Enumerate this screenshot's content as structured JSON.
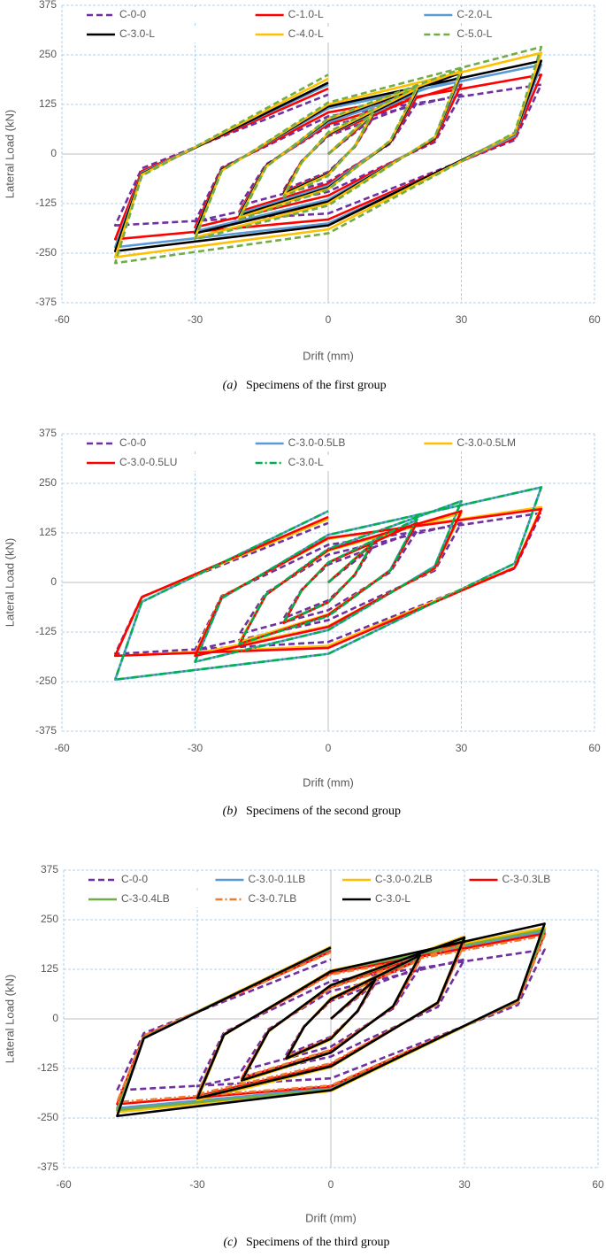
{
  "chart_data": [
    {
      "type": "line",
      "xlabel": "Drift (mm)",
      "ylabel": "Lateral Load (kN)",
      "caption_label": "(a)",
      "caption": "Specimens of the first group",
      "xlim": [
        -60,
        60
      ],
      "xticks": [
        -60,
        -30,
        0,
        30,
        60
      ],
      "ylim": [
        -375,
        375
      ],
      "yticks": [
        -375,
        -250,
        -125,
        0,
        125,
        250,
        375
      ],
      "grid": true,
      "legend": "top",
      "x": [
        0,
        10,
        6,
        0,
        -10,
        -6,
        0,
        20,
        14,
        0,
        -20,
        -14,
        0,
        30,
        24,
        0,
        -30,
        -24,
        0,
        48,
        42,
        0,
        -48,
        -42,
        0
      ],
      "series": [
        {
          "name": "C-0-0",
          "color": "#7030a0",
          "linestyle": "dashed",
          "values": [
            0,
            90,
            18,
            -45,
            -90,
            -18,
            45,
            130,
            26,
            -70,
            -130,
            -26,
            70,
            150,
            30,
            -95,
            -170,
            -34,
            95,
            175,
            35,
            -150,
            -180,
            -36,
            150
          ]
        },
        {
          "name": "C-1.0-L",
          "color": "#ff0000",
          "linestyle": "solid",
          "values": [
            0,
            95,
            19,
            -48,
            -95,
            -19,
            48,
            145,
            29,
            -75,
            -145,
            -29,
            75,
            175,
            35,
            -105,
            -185,
            -37,
            105,
            200,
            40,
            -165,
            -215,
            -43,
            165
          ]
        },
        {
          "name": "C-2.0-L",
          "color": "#5b9bd5",
          "linestyle": "solid",
          "values": [
            0,
            98,
            20,
            -49,
            -98,
            -20,
            49,
            155,
            31,
            -80,
            -150,
            -30,
            80,
            195,
            39,
            -115,
            -195,
            -39,
            115,
            225,
            45,
            -175,
            -235,
            -47,
            175
          ]
        },
        {
          "name": "C-3.0-L",
          "color": "#000000",
          "linestyle": "solid",
          "values": [
            0,
            100,
            20,
            -50,
            -100,
            -20,
            50,
            160,
            30,
            -85,
            -155,
            -30,
            85,
            205,
            40,
            -120,
            -200,
            -40,
            120,
            235,
            50,
            -180,
            -245,
            -50,
            180
          ]
        },
        {
          "name": "C-4.0-L",
          "color": "#ffc000",
          "linestyle": "solid",
          "values": [
            0,
            102,
            20,
            -52,
            -104,
            -21,
            52,
            165,
            33,
            -88,
            -160,
            -32,
            88,
            210,
            42,
            -125,
            -210,
            -42,
            125,
            255,
            51,
            -190,
            -260,
            -52,
            190
          ]
        },
        {
          "name": "C-5.0-L",
          "color": "#70ad47",
          "linestyle": "dashed",
          "values": [
            0,
            105,
            21,
            -55,
            -108,
            -22,
            55,
            170,
            34,
            -90,
            -165,
            -33,
            90,
            215,
            43,
            -130,
            -215,
            -43,
            130,
            270,
            54,
            -200,
            -275,
            -55,
            200
          ]
        }
      ]
    },
    {
      "type": "line",
      "xlabel": "Drift (mm)",
      "ylabel": "Lateral Load (kN)",
      "caption_label": "(b)",
      "caption": "Specimens of the second group",
      "xlim": [
        -60,
        60
      ],
      "xticks": [
        -60,
        -30,
        0,
        30,
        60
      ],
      "ylim": [
        -375,
        375
      ],
      "yticks": [
        -375,
        -250,
        -125,
        0,
        125,
        250,
        375
      ],
      "grid": true,
      "legend": "top",
      "x": [
        0,
        10,
        6,
        0,
        -10,
        -6,
        0,
        20,
        14,
        0,
        -20,
        -14,
        0,
        30,
        24,
        0,
        -30,
        -24,
        0,
        48,
        42,
        0,
        -48,
        -42,
        0
      ],
      "series": [
        {
          "name": "C-0-0",
          "color": "#7030a0",
          "linestyle": "dashed",
          "values": [
            0,
            90,
            18,
            -45,
            -90,
            -18,
            45,
            130,
            26,
            -70,
            -130,
            -26,
            70,
            150,
            30,
            -95,
            -170,
            -34,
            95,
            175,
            35,
            -150,
            -180,
            -36,
            150
          ]
        },
        {
          "name": "C-3.0-0.5LB",
          "color": "#5b9bd5",
          "linestyle": "solid",
          "values": [
            0,
            100,
            20,
            -50,
            -100,
            -20,
            50,
            158,
            32,
            -84,
            -155,
            -31,
            84,
            205,
            41,
            -120,
            -200,
            -40,
            120,
            240,
            48,
            -180,
            -245,
            -49,
            180
          ]
        },
        {
          "name": "C-3.0-0.5LM",
          "color": "#ffc000",
          "linestyle": "solid",
          "values": [
            0,
            100,
            20,
            -50,
            -100,
            -20,
            50,
            150,
            30,
            -80,
            -150,
            -30,
            80,
            175,
            35,
            -110,
            -180,
            -36,
            110,
            190,
            38,
            -160,
            -185,
            -37,
            160
          ]
        },
        {
          "name": "C-3.0-0.5LU",
          "color": "#ff0000",
          "linestyle": "solid",
          "values": [
            0,
            98,
            20,
            -50,
            -102,
            -20,
            50,
            150,
            30,
            -82,
            -155,
            -31,
            82,
            180,
            36,
            -112,
            -185,
            -37,
            112,
            185,
            37,
            -165,
            -185,
            -37,
            165
          ]
        },
        {
          "name": "C-3.0-L",
          "color": "#00b050",
          "linestyle": "dash-dot",
          "values": [
            0,
            100,
            20,
            -50,
            -100,
            -20,
            50,
            160,
            30,
            -85,
            -155,
            -30,
            85,
            205,
            40,
            -120,
            -200,
            -40,
            120,
            240,
            48,
            -180,
            -245,
            -49,
            180
          ]
        }
      ]
    },
    {
      "type": "line",
      "xlabel": "Drift (mm)",
      "ylabel": "Lateral Load (kN)",
      "caption_label": "(c)",
      "caption": "Specimens of the third group",
      "xlim": [
        -60,
        60
      ],
      "xticks": [
        -60,
        -30,
        0,
        30,
        60
      ],
      "ylim": [
        -375,
        375
      ],
      "yticks": [
        -375,
        -250,
        -125,
        0,
        125,
        250,
        375
      ],
      "grid": true,
      "legend": "top",
      "x": [
        0,
        10,
        6,
        0,
        -10,
        -6,
        0,
        20,
        14,
        0,
        -20,
        -14,
        0,
        30,
        24,
        0,
        -30,
        -24,
        0,
        48,
        42,
        0,
        -48,
        -42,
        0
      ],
      "series": [
        {
          "name": "C-0-0",
          "color": "#7030a0",
          "linestyle": "dashed",
          "values": [
            0,
            90,
            18,
            -45,
            -90,
            -18,
            45,
            130,
            26,
            -70,
            -130,
            -26,
            70,
            150,
            30,
            -95,
            -170,
            -34,
            95,
            175,
            35,
            -150,
            -180,
            -36,
            150
          ]
        },
        {
          "name": "C-3.0-0.1LB",
          "color": "#5b9bd5",
          "linestyle": "solid",
          "values": [
            0,
            98,
            20,
            -50,
            -100,
            -20,
            50,
            155,
            31,
            -82,
            -155,
            -31,
            82,
            200,
            40,
            -118,
            -200,
            -40,
            118,
            220,
            44,
            -175,
            -225,
            -45,
            175
          ]
        },
        {
          "name": "C-3.0-0.2LB",
          "color": "#ffc000",
          "linestyle": "solid",
          "values": [
            0,
            102,
            20,
            -52,
            -102,
            -20,
            52,
            162,
            32,
            -85,
            -158,
            -32,
            85,
            208,
            42,
            -122,
            -205,
            -41,
            122,
            230,
            46,
            -182,
            -235,
            -47,
            182
          ]
        },
        {
          "name": "C-3-0.3LB",
          "color": "#ff0000",
          "linestyle": "solid",
          "values": [
            0,
            96,
            19,
            -48,
            -98,
            -19,
            48,
            150,
            30,
            -80,
            -150,
            -30,
            80,
            195,
            39,
            -115,
            -195,
            -39,
            115,
            215,
            43,
            -170,
            -215,
            -43,
            170
          ]
        },
        {
          "name": "C-3-0.4LB",
          "color": "#70ad47",
          "linestyle": "solid",
          "values": [
            0,
            100,
            20,
            -50,
            -100,
            -20,
            50,
            158,
            32,
            -84,
            -155,
            -31,
            84,
            203,
            41,
            -120,
            -198,
            -40,
            120,
            225,
            45,
            -178,
            -230,
            -46,
            178
          ]
        },
        {
          "name": "C-3-0.7LB",
          "color": "#ed7d31",
          "linestyle": "dash-dot",
          "values": [
            0,
            95,
            19,
            -48,
            -96,
            -19,
            48,
            148,
            30,
            -78,
            -148,
            -30,
            78,
            190,
            38,
            -112,
            -190,
            -38,
            112,
            210,
            42,
            -168,
            -210,
            -42,
            168
          ]
        },
        {
          "name": "C-3.0-L",
          "color": "#000000",
          "linestyle": "solid",
          "values": [
            0,
            100,
            20,
            -50,
            -100,
            -20,
            50,
            160,
            32,
            -85,
            -155,
            -31,
            85,
            205,
            41,
            -120,
            -200,
            -40,
            120,
            240,
            48,
            -180,
            -245,
            -49,
            180
          ]
        }
      ]
    }
  ]
}
